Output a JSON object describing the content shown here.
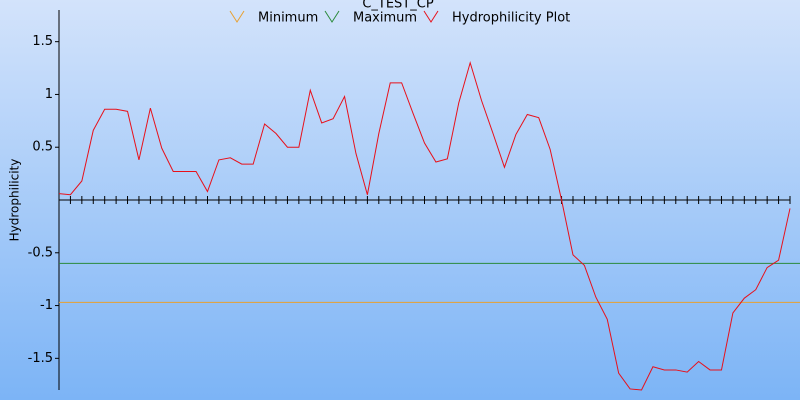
{
  "chart_data": {
    "type": "line",
    "title": "C_TEST_CP",
    "y_label": "Hydrophilicity",
    "series": [
      {
        "name": "Minimum",
        "color": "#e8a030",
        "value": -0.97
      },
      {
        "name": "Maximum",
        "color": "#2a8a3a",
        "value": -0.6
      },
      {
        "name": "Hydrophilicity Plot",
        "color": "#e8101a",
        "values": [
          0.06,
          0.05,
          0.18,
          0.66,
          0.86,
          0.86,
          0.84,
          0.38,
          0.87,
          0.49,
          0.27,
          0.27,
          0.27,
          0.08,
          0.38,
          0.4,
          0.34,
          0.34,
          0.72,
          0.63,
          0.5,
          0.5,
          1.04,
          0.73,
          0.77,
          0.98,
          0.44,
          0.05,
          0.63,
          1.11,
          1.11,
          0.82,
          0.54,
          0.36,
          0.39,
          0.92,
          1.3,
          0.94,
          0.63,
          0.31,
          0.62,
          0.81,
          0.78,
          0.48,
          0.0,
          -0.52,
          -0.62,
          -0.92,
          -1.13,
          -1.64,
          -1.79,
          -1.8,
          -1.58,
          -1.61,
          -1.61,
          -1.63,
          -1.53,
          -1.61,
          -1.61,
          -1.07,
          -0.93,
          -0.85,
          -0.64,
          -0.57,
          -0.08
        ]
      }
    ],
    "ylim": [
      -1.8,
      1.8
    ],
    "yticks": [
      1.5,
      1,
      0.5,
      -0.5,
      -1,
      -1.5
    ]
  }
}
